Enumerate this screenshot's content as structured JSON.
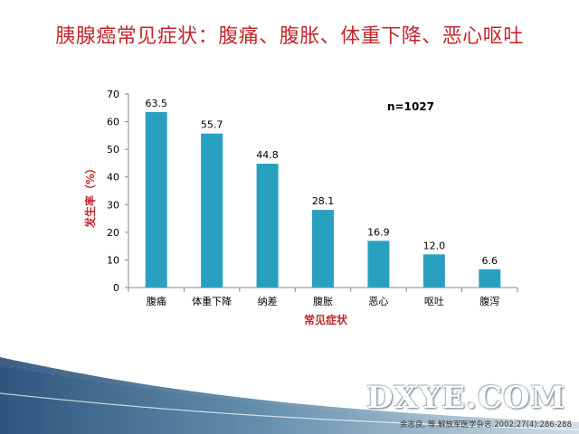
{
  "slide": {
    "title": "胰腺癌常见症状：腹痛、腹胀、体重下降、恶心呕吐",
    "watermark": "DXYE.COM",
    "citation": "余志良, 等.解放军医学杂志.2002;27(4):286-288"
  },
  "chart_data": {
    "type": "bar",
    "categories": [
      "腹痛",
      "体重下降",
      "纳差",
      "腹胀",
      "恶心",
      "呕吐",
      "腹泻"
    ],
    "values": [
      63.5,
      55.7,
      44.8,
      28.1,
      16.9,
      12.0,
      6.6
    ],
    "value_labels": [
      "63.5",
      "55.7",
      "44.8",
      "28.1",
      "16.9",
      "12.0",
      "6.6"
    ],
    "xlabel": "常见症状",
    "ylabel": "发生率（%）",
    "ylim": [
      0,
      70
    ],
    "yticks": [
      0,
      10,
      20,
      30,
      40,
      50,
      60,
      70
    ],
    "annotation": "n=1027",
    "grid": false,
    "legend": "none",
    "colors": {
      "bar": "#2aa0c0",
      "axis_title": "#c0282d",
      "title": "#c0282d"
    }
  }
}
